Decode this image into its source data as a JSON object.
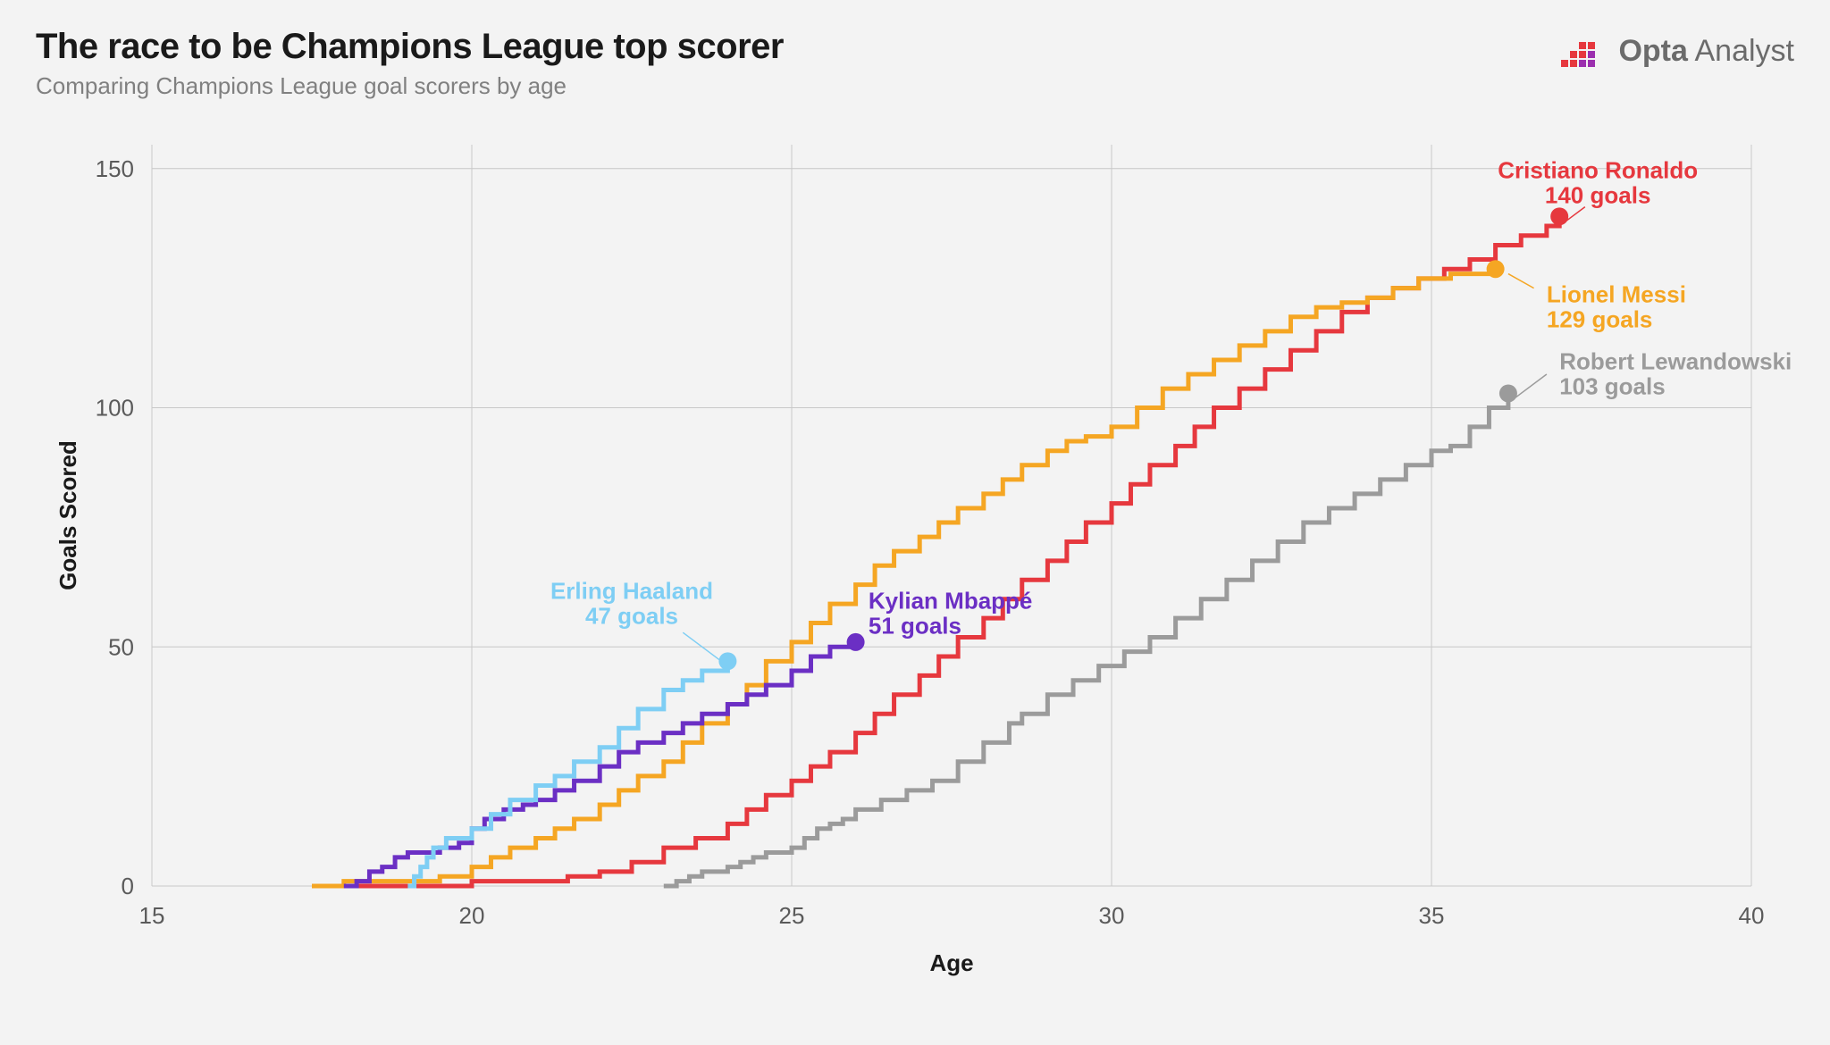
{
  "title": "The race to be Champions League top scorer",
  "subtitle": "Comparing Champions League goal scorers by age",
  "brand": {
    "bold": "Opta",
    "light": " Analyst"
  },
  "chart": {
    "type": "step-line",
    "background_color": "#f3f3f3",
    "grid_color": "#c8c8c8",
    "axis_color": "#808080",
    "xlabel": "Age",
    "ylabel": "Goals Scored",
    "xlim": [
      15,
      40
    ],
    "ylim": [
      0,
      155
    ],
    "xticks": [
      15,
      20,
      25,
      30,
      35,
      40
    ],
    "yticks": [
      0,
      50,
      100,
      150
    ],
    "line_width": 5,
    "marker_radius": 10,
    "label_fontsize": 26,
    "tick_fontsize": 26,
    "axis_label_fontsize": 26,
    "series": [
      {
        "name": "Robert Lewandowski",
        "color": "#9b9b9b",
        "label_lines": [
          "Robert Lewandowski",
          "103 goals"
        ],
        "label_pos": {
          "x": 37.0,
          "y": 108,
          "anchor": "start"
        },
        "leader": {
          "from": {
            "x": 36.3,
            "y": 102
          },
          "to": {
            "x": 36.8,
            "y": 107
          }
        },
        "data": [
          [
            23.0,
            0
          ],
          [
            23.2,
            1
          ],
          [
            23.4,
            2
          ],
          [
            23.6,
            3
          ],
          [
            24.0,
            4
          ],
          [
            24.2,
            5
          ],
          [
            24.4,
            6
          ],
          [
            24.6,
            7
          ],
          [
            25.0,
            8
          ],
          [
            25.2,
            10
          ],
          [
            25.4,
            12
          ],
          [
            25.6,
            13
          ],
          [
            25.8,
            14
          ],
          [
            26.0,
            16
          ],
          [
            26.4,
            18
          ],
          [
            26.8,
            20
          ],
          [
            27.2,
            22
          ],
          [
            27.6,
            26
          ],
          [
            28.0,
            30
          ],
          [
            28.4,
            34
          ],
          [
            28.6,
            36
          ],
          [
            29.0,
            40
          ],
          [
            29.4,
            43
          ],
          [
            29.8,
            46
          ],
          [
            30.2,
            49
          ],
          [
            30.6,
            52
          ],
          [
            31.0,
            56
          ],
          [
            31.4,
            60
          ],
          [
            31.8,
            64
          ],
          [
            32.2,
            68
          ],
          [
            32.6,
            72
          ],
          [
            33.0,
            76
          ],
          [
            33.4,
            79
          ],
          [
            33.8,
            82
          ],
          [
            34.2,
            85
          ],
          [
            34.6,
            88
          ],
          [
            35.0,
            91
          ],
          [
            35.3,
            92
          ],
          [
            35.6,
            96
          ],
          [
            35.9,
            100
          ],
          [
            36.2,
            103
          ]
        ],
        "end": {
          "x": 36.2,
          "y": 103
        }
      },
      {
        "name": "Cristiano Ronaldo",
        "color": "#e6383e",
        "label_lines": [
          "Cristiano Ronaldo",
          "140 goals"
        ],
        "label_pos": {
          "x": 37.6,
          "y": 148,
          "anchor": "middle"
        },
        "leader": {
          "from": {
            "x": 37.1,
            "y": 139
          },
          "to": {
            "x": 37.4,
            "y": 142
          }
        },
        "data": [
          [
            18.0,
            0
          ],
          [
            19.5,
            0
          ],
          [
            20.0,
            1
          ],
          [
            21.0,
            1
          ],
          [
            21.5,
            2
          ],
          [
            22.0,
            3
          ],
          [
            22.5,
            5
          ],
          [
            23.0,
            8
          ],
          [
            23.5,
            10
          ],
          [
            24.0,
            13
          ],
          [
            24.3,
            16
          ],
          [
            24.6,
            19
          ],
          [
            25.0,
            22
          ],
          [
            25.3,
            25
          ],
          [
            25.6,
            28
          ],
          [
            26.0,
            32
          ],
          [
            26.3,
            36
          ],
          [
            26.6,
            40
          ],
          [
            27.0,
            44
          ],
          [
            27.3,
            48
          ],
          [
            27.6,
            52
          ],
          [
            28.0,
            56
          ],
          [
            28.3,
            60
          ],
          [
            28.6,
            64
          ],
          [
            29.0,
            68
          ],
          [
            29.3,
            72
          ],
          [
            29.6,
            76
          ],
          [
            30.0,
            80
          ],
          [
            30.3,
            84
          ],
          [
            30.6,
            88
          ],
          [
            31.0,
            92
          ],
          [
            31.3,
            96
          ],
          [
            31.6,
            100
          ],
          [
            32.0,
            104
          ],
          [
            32.4,
            108
          ],
          [
            32.8,
            112
          ],
          [
            33.2,
            116
          ],
          [
            33.6,
            120
          ],
          [
            34.0,
            123
          ],
          [
            34.4,
            125
          ],
          [
            34.8,
            127
          ],
          [
            35.2,
            129
          ],
          [
            35.6,
            131
          ],
          [
            36.0,
            134
          ],
          [
            36.4,
            136
          ],
          [
            36.8,
            138
          ],
          [
            37.0,
            140
          ]
        ],
        "end": {
          "x": 37.0,
          "y": 140
        }
      },
      {
        "name": "Lionel Messi",
        "color": "#f5a623",
        "label_lines": [
          "Lionel Messi",
          "129 goals"
        ],
        "label_pos": {
          "x": 36.8,
          "y": 122,
          "anchor": "start"
        },
        "leader": {
          "from": {
            "x": 36.2,
            "y": 128
          },
          "to": {
            "x": 36.6,
            "y": 125
          }
        },
        "data": [
          [
            17.5,
            0
          ],
          [
            18.0,
            1
          ],
          [
            18.5,
            1
          ],
          [
            19.0,
            1
          ],
          [
            19.5,
            2
          ],
          [
            20.0,
            4
          ],
          [
            20.3,
            6
          ],
          [
            20.6,
            8
          ],
          [
            21.0,
            10
          ],
          [
            21.3,
            12
          ],
          [
            21.6,
            14
          ],
          [
            22.0,
            17
          ],
          [
            22.3,
            20
          ],
          [
            22.6,
            23
          ],
          [
            23.0,
            26
          ],
          [
            23.3,
            30
          ],
          [
            23.6,
            34
          ],
          [
            24.0,
            38
          ],
          [
            24.3,
            42
          ],
          [
            24.6,
            47
          ],
          [
            25.0,
            51
          ],
          [
            25.3,
            55
          ],
          [
            25.6,
            59
          ],
          [
            26.0,
            63
          ],
          [
            26.3,
            67
          ],
          [
            26.6,
            70
          ],
          [
            27.0,
            73
          ],
          [
            27.3,
            76
          ],
          [
            27.6,
            79
          ],
          [
            28.0,
            82
          ],
          [
            28.3,
            85
          ],
          [
            28.6,
            88
          ],
          [
            29.0,
            91
          ],
          [
            29.3,
            93
          ],
          [
            29.6,
            94
          ],
          [
            30.0,
            96
          ],
          [
            30.4,
            100
          ],
          [
            30.8,
            104
          ],
          [
            31.2,
            107
          ],
          [
            31.6,
            110
          ],
          [
            32.0,
            113
          ],
          [
            32.4,
            116
          ],
          [
            32.8,
            119
          ],
          [
            33.2,
            121
          ],
          [
            33.6,
            122
          ],
          [
            34.0,
            123
          ],
          [
            34.4,
            125
          ],
          [
            34.8,
            127
          ],
          [
            35.3,
            128
          ],
          [
            36.0,
            129
          ]
        ],
        "end": {
          "x": 36.0,
          "y": 129
        }
      },
      {
        "name": "Kylian Mbappé",
        "color": "#6b2fc4",
        "label_lines": [
          "Kylian Mbappé",
          "51 goals"
        ],
        "label_pos": {
          "x": 26.2,
          "y": 58,
          "anchor": "start"
        },
        "leader": null,
        "data": [
          [
            18.0,
            0
          ],
          [
            18.2,
            1
          ],
          [
            18.4,
            3
          ],
          [
            18.6,
            4
          ],
          [
            18.8,
            6
          ],
          [
            19.0,
            7
          ],
          [
            19.5,
            8
          ],
          [
            19.8,
            9
          ],
          [
            20.0,
            12
          ],
          [
            20.2,
            14
          ],
          [
            20.5,
            16
          ],
          [
            20.8,
            17
          ],
          [
            21.0,
            18
          ],
          [
            21.3,
            20
          ],
          [
            21.6,
            22
          ],
          [
            22.0,
            25
          ],
          [
            22.3,
            28
          ],
          [
            22.6,
            30
          ],
          [
            23.0,
            32
          ],
          [
            23.3,
            34
          ],
          [
            23.6,
            36
          ],
          [
            24.0,
            38
          ],
          [
            24.3,
            40
          ],
          [
            24.6,
            42
          ],
          [
            25.0,
            45
          ],
          [
            25.3,
            48
          ],
          [
            25.6,
            50
          ],
          [
            26.0,
            51
          ]
        ],
        "end": {
          "x": 26.0,
          "y": 51
        }
      },
      {
        "name": "Erling Haaland",
        "color": "#7ecef4",
        "label_lines": [
          "Erling Haaland",
          "47 goals"
        ],
        "label_pos": {
          "x": 22.5,
          "y": 60,
          "anchor": "middle"
        },
        "leader": {
          "from": {
            "x": 24.0,
            "y": 46
          },
          "to": {
            "x": 23.3,
            "y": 53
          }
        },
        "data": [
          [
            19.0,
            0
          ],
          [
            19.1,
            2
          ],
          [
            19.2,
            4
          ],
          [
            19.3,
            6
          ],
          [
            19.4,
            8
          ],
          [
            19.6,
            10
          ],
          [
            20.0,
            12
          ],
          [
            20.3,
            15
          ],
          [
            20.6,
            18
          ],
          [
            21.0,
            21
          ],
          [
            21.3,
            23
          ],
          [
            21.6,
            26
          ],
          [
            22.0,
            29
          ],
          [
            22.3,
            33
          ],
          [
            22.6,
            37
          ],
          [
            23.0,
            41
          ],
          [
            23.3,
            43
          ],
          [
            23.6,
            45
          ],
          [
            24.0,
            47
          ]
        ],
        "end": {
          "x": 24.0,
          "y": 47
        }
      }
    ]
  }
}
